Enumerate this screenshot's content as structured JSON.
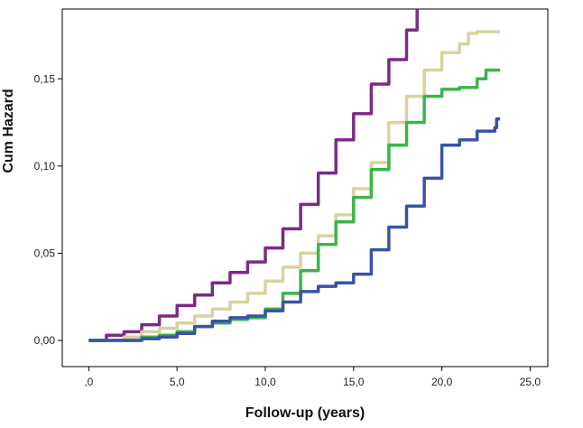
{
  "chart_data": {
    "type": "line",
    "title": "",
    "xlabel": "Follow-up (years)",
    "ylabel": "Cum Hazard",
    "xlim": [
      -1.5,
      26
    ],
    "ylim": [
      -0.015,
      0.19
    ],
    "x_ticks": [
      0,
      5,
      10,
      15,
      20,
      25
    ],
    "x_tick_labels": [
      ",0",
      "5,0",
      "10,0",
      "15,0",
      "20,0",
      "25,0"
    ],
    "y_ticks": [
      0,
      0.05,
      0.1,
      0.15
    ],
    "y_tick_labels": [
      "0,00",
      "0,05",
      "0,10",
      "0,15"
    ],
    "grid": false,
    "legend": "none",
    "series": [
      {
        "color": "#7b2a86",
        "points": [
          [
            0,
            0
          ],
          [
            0.5,
            0
          ],
          [
            1,
            0.003
          ],
          [
            2,
            0.005
          ],
          [
            3,
            0.009
          ],
          [
            4,
            0.014
          ],
          [
            5,
            0.02
          ],
          [
            6,
            0.026
          ],
          [
            7,
            0.033
          ],
          [
            8,
            0.039
          ],
          [
            9,
            0.045
          ],
          [
            10,
            0.053
          ],
          [
            11,
            0.064
          ],
          [
            12,
            0.078
          ],
          [
            13,
            0.096
          ],
          [
            14,
            0.115
          ],
          [
            15,
            0.13
          ],
          [
            16,
            0.147
          ],
          [
            17,
            0.161
          ],
          [
            18,
            0.178
          ],
          [
            18.6,
            0.19
          ]
        ]
      },
      {
        "color": "#d9d2a0",
        "points": [
          [
            0,
            0
          ],
          [
            1,
            0
          ],
          [
            2,
            0.002
          ],
          [
            3,
            0.005
          ],
          [
            4,
            0.007
          ],
          [
            5,
            0.01
          ],
          [
            6,
            0.014
          ],
          [
            7,
            0.018
          ],
          [
            8,
            0.022
          ],
          [
            9,
            0.027
          ],
          [
            10,
            0.034
          ],
          [
            11,
            0.042
          ],
          [
            12,
            0.05
          ],
          [
            13,
            0.06
          ],
          [
            14,
            0.072
          ],
          [
            15,
            0.087
          ],
          [
            16,
            0.102
          ],
          [
            17,
            0.125
          ],
          [
            18,
            0.14
          ],
          [
            19,
            0.155
          ],
          [
            20,
            0.165
          ],
          [
            21,
            0.17
          ],
          [
            21.5,
            0.176
          ],
          [
            22,
            0.177
          ],
          [
            23.3,
            0.177
          ]
        ]
      },
      {
        "color": "#3cb54a",
        "points": [
          [
            0,
            0
          ],
          [
            2,
            0
          ],
          [
            3,
            0.002
          ],
          [
            4,
            0.003
          ],
          [
            5,
            0.005
          ],
          [
            6,
            0.008
          ],
          [
            7,
            0.01
          ],
          [
            8,
            0.012
          ],
          [
            9,
            0.013
          ],
          [
            10,
            0.018
          ],
          [
            11,
            0.027
          ],
          [
            12,
            0.04
          ],
          [
            13,
            0.055
          ],
          [
            14,
            0.068
          ],
          [
            15,
            0.082
          ],
          [
            16,
            0.098
          ],
          [
            17,
            0.112
          ],
          [
            18,
            0.125
          ],
          [
            19,
            0.14
          ],
          [
            20,
            0.144
          ],
          [
            21,
            0.145
          ],
          [
            22,
            0.15
          ],
          [
            22.5,
            0.155
          ],
          [
            23.3,
            0.155
          ]
        ]
      },
      {
        "color": "#3a53a4",
        "points": [
          [
            0,
            0
          ],
          [
            2,
            0
          ],
          [
            3,
            0.001
          ],
          [
            4,
            0.002
          ],
          [
            5,
            0.004
          ],
          [
            6,
            0.008
          ],
          [
            7,
            0.011
          ],
          [
            8,
            0.013
          ],
          [
            9,
            0.014
          ],
          [
            10,
            0.017
          ],
          [
            11,
            0.022
          ],
          [
            12,
            0.028
          ],
          [
            13,
            0.031
          ],
          [
            14,
            0.033
          ],
          [
            15,
            0.038
          ],
          [
            16,
            0.052
          ],
          [
            17,
            0.065
          ],
          [
            18,
            0.077
          ],
          [
            19,
            0.093
          ],
          [
            20,
            0.112
          ],
          [
            21,
            0.115
          ],
          [
            22,
            0.12
          ],
          [
            23,
            0.122
          ],
          [
            23.1,
            0.127
          ],
          [
            23.3,
            0.127
          ]
        ]
      }
    ]
  }
}
